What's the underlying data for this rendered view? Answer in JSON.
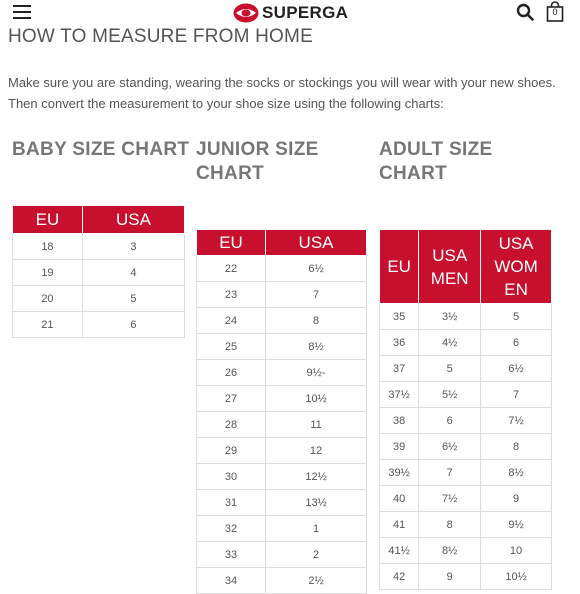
{
  "header": {
    "brand": "SUPERGA",
    "cart_count": "0",
    "menu_icon": "hamburger-icon",
    "search_icon": "search-icon",
    "cart_icon": "shopping-bag-icon",
    "brand_color": "#c8102e"
  },
  "page": {
    "title": "HOW TO MEASURE FROM HOME",
    "intro_line1": "Make sure you are standing, wearing the socks or stockings you will wear with your new shoes.",
    "intro_line2": "Then convert the measurement to your shoe size using the following charts:"
  },
  "charts": {
    "baby": {
      "title": "BABY SIZE CHART",
      "headers": [
        "EU",
        "USA"
      ],
      "rows": [
        [
          "18",
          "3"
        ],
        [
          "19",
          "4"
        ],
        [
          "20",
          "5"
        ],
        [
          "21",
          "6"
        ]
      ]
    },
    "junior": {
      "title_line1": "JUNIOR SIZE",
      "title_line2": "CHART",
      "headers": [
        "EU",
        "USA"
      ],
      "rows": [
        [
          "22",
          "6½"
        ],
        [
          "23",
          "7"
        ],
        [
          "24",
          "8"
        ],
        [
          "25",
          "8½"
        ],
        [
          "26",
          "9½-"
        ],
        [
          "27",
          "10½"
        ],
        [
          "28",
          "11"
        ],
        [
          "29",
          "12"
        ],
        [
          "30",
          "12½"
        ],
        [
          "31",
          "13½"
        ],
        [
          "32",
          "1"
        ],
        [
          "33",
          "2"
        ],
        [
          "34",
          "2½"
        ]
      ]
    },
    "adult": {
      "title_line1": "ADULT SIZE",
      "title_line2": "CHART",
      "headers": [
        "EU",
        "USA MEN",
        "USA WOM EN"
      ],
      "header_lines": [
        [
          "EU"
        ],
        [
          "USA",
          "MEN"
        ],
        [
          "USA",
          "WOM",
          "EN"
        ]
      ],
      "rows": [
        [
          "35",
          "3½",
          "5"
        ],
        [
          "36",
          "4½",
          "6"
        ],
        [
          "37",
          "5",
          "6½"
        ],
        [
          "37½",
          "5½",
          "7"
        ],
        [
          "38",
          "6",
          "7½"
        ],
        [
          "39",
          "6½",
          "8"
        ],
        [
          "39½",
          "7",
          "8½"
        ],
        [
          "40",
          "7½",
          "9"
        ],
        [
          "41",
          "8",
          "9½"
        ],
        [
          "41½",
          "8½",
          "10"
        ],
        [
          "42",
          "9",
          "10½"
        ]
      ]
    }
  }
}
